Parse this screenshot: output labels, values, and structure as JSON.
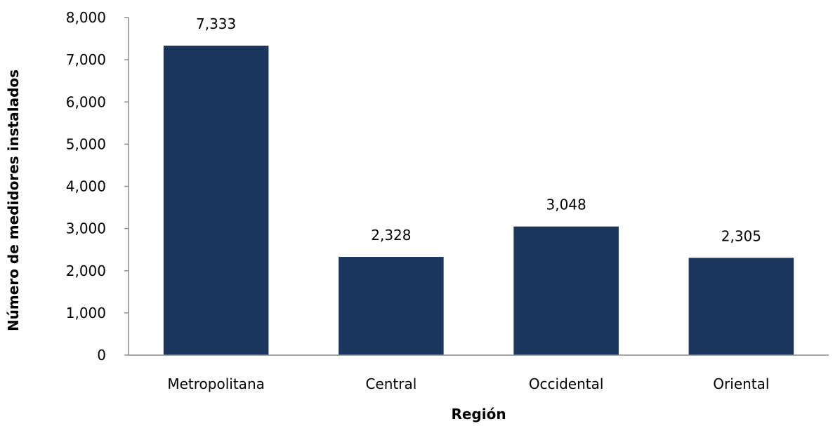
{
  "chart_data": {
    "type": "bar",
    "title": "",
    "xlabel": "Región",
    "ylabel": "Número de medidores instalados",
    "categories": [
      "Metropolitana",
      "Central",
      "Occidental",
      "Oriental"
    ],
    "values": [
      7333,
      2328,
      3048,
      2305
    ],
    "value_labels": [
      "7,333",
      "2,328",
      "3,048",
      "2,305"
    ],
    "ylim": [
      0,
      8000
    ],
    "yticks": [
      0,
      1000,
      2000,
      3000,
      4000,
      5000,
      6000,
      7000,
      8000
    ],
    "ytick_labels": [
      "0",
      "1,000",
      "2,000",
      "3,000",
      "4,000",
      "5,000",
      "6,000",
      "7,000",
      "8,000"
    ],
    "grid": false,
    "legend": "none",
    "bar_color": "#1b365d",
    "axis_color": "#8c8c8c"
  }
}
